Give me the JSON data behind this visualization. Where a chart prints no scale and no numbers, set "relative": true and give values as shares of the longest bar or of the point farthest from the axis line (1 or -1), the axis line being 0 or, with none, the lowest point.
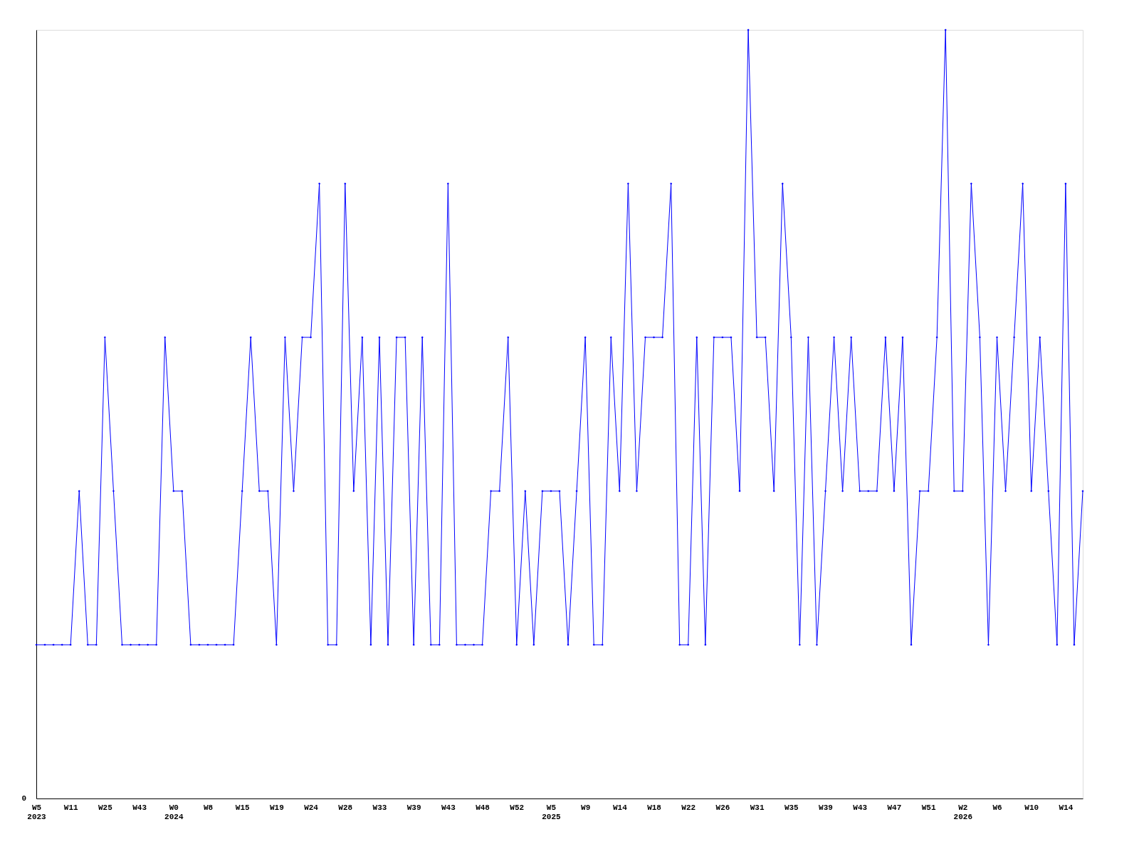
{
  "chart_data": {
    "type": "line",
    "relative": true,
    "marker": "diamond",
    "line_style": "solid",
    "grid": false,
    "annotations": [
      "0"
    ],
    "categories": [
      "W5\n2023",
      null,
      null,
      null,
      "W11",
      null,
      null,
      null,
      "W25",
      null,
      null,
      null,
      "W43",
      null,
      null,
      null,
      "W0\n2024",
      null,
      null,
      null,
      "W8",
      null,
      null,
      null,
      "W15",
      null,
      null,
      null,
      "W19",
      null,
      null,
      null,
      "W24",
      null,
      null,
      null,
      "W28",
      null,
      null,
      null,
      "W33",
      null,
      null,
      null,
      "W39",
      null,
      null,
      null,
      "W43",
      null,
      null,
      null,
      "W48",
      null,
      null,
      null,
      "W52",
      null,
      null,
      null,
      "W5\n2025",
      null,
      null,
      null,
      "W9",
      null,
      null,
      null,
      "W14",
      null,
      null,
      null,
      "W18",
      null,
      null,
      null,
      "W22",
      null,
      null,
      null,
      "W26",
      null,
      null,
      null,
      "W31",
      null,
      null,
      null,
      "W35",
      null,
      null,
      null,
      "W39",
      null,
      null,
      null,
      "W43",
      null,
      null,
      null,
      "W47",
      null,
      null,
      null,
      "W51",
      null,
      null,
      null,
      "W2\n2026",
      null,
      null,
      null,
      "W6",
      null,
      null,
      null,
      "W10",
      null,
      null,
      null,
      "W14",
      null,
      null
    ],
    "series": [
      {
        "color": "#0000ff",
        "values": [
          0.2,
          0.2,
          0.2,
          0.2,
          0.2,
          0.4,
          0.2,
          0.2,
          0.6,
          0.4,
          0.2,
          0.2,
          0.2,
          0.2,
          0.2,
          0.6,
          0.4,
          0.4,
          0.2,
          0.2,
          0.2,
          0.2,
          0.2,
          0.2,
          0.4,
          0.6,
          0.4,
          0.4,
          0.2,
          0.6,
          0.4,
          0.6,
          0.6,
          0.8,
          0.2,
          0.2,
          0.8,
          0.4,
          0.6,
          0.2,
          0.6,
          0.2,
          0.6,
          0.6,
          0.2,
          0.6,
          0.2,
          0.2,
          0.8,
          0.2,
          0.2,
          0.2,
          0.2,
          0.4,
          0.4,
          0.6,
          0.2,
          0.4,
          0.2,
          0.4,
          0.4,
          0.4,
          0.2,
          0.4,
          0.6,
          0.2,
          0.2,
          0.6,
          0.4,
          0.8,
          0.4,
          0.6,
          0.6,
          0.6,
          0.8,
          0.2,
          0.2,
          0.6,
          0.2,
          0.6,
          0.6,
          0.6,
          0.4,
          1,
          0.6,
          0.6,
          0.4,
          0.8,
          0.6,
          0.2,
          0.6,
          0.2,
          0.4,
          0.6,
          0.4,
          0.6,
          0.4,
          0.4,
          0.4,
          0.6,
          0.4,
          0.6,
          0.2,
          0.4,
          0.4,
          0.6,
          1,
          0.4,
          0.4,
          0.8,
          0.6,
          0.2,
          0.6,
          0.4,
          0.6,
          0.8,
          0.4,
          0.6,
          0.4,
          0.2,
          0.8,
          0.2,
          0.4
        ]
      }
    ]
  }
}
